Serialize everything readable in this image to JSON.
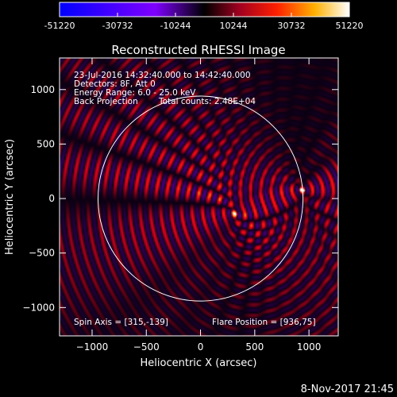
{
  "chart_data": {
    "type": "heatmap",
    "title": "Reconstructed RHESSI Image",
    "xlabel": "Heliocentric X (arcsec)",
    "ylabel": "Heliocentric Y (arcsec)",
    "xlim": [
      -1300,
      1270
    ],
    "ylim": [
      -1260,
      1290
    ],
    "x_ticks": [
      -1000,
      -500,
      0,
      500,
      1000
    ],
    "y_ticks": [
      -1000,
      -500,
      0,
      500,
      1000
    ],
    "colorbar": {
      "min": -51220,
      "max": 51220,
      "ticks": [
        "-51220",
        "-30732",
        "-10244",
        "10244",
        "30732",
        "51220"
      ]
    },
    "info_lines": [
      "23-Jul-2016 14:32:40.000 to 14:42:40.000",
      "Detectors: 8F, Att 0",
      "Energy Range: 6.0 - 25.0 keV",
      "Back Projection"
    ],
    "total_counts": "Total counts: 2.48E+04",
    "spin_axis": "Spin Axis = [315,-139]",
    "flare_position": "Flare Position = [936,75]",
    "sources": [
      {
        "x": 936,
        "y": 75
      },
      {
        "x": 315,
        "y": -139
      }
    ],
    "solar_limb_radius": 945,
    "colors": {
      "limb": "#ffffff",
      "background": "#000000"
    }
  },
  "footer_timestamp": "8-Nov-2017 21:45"
}
